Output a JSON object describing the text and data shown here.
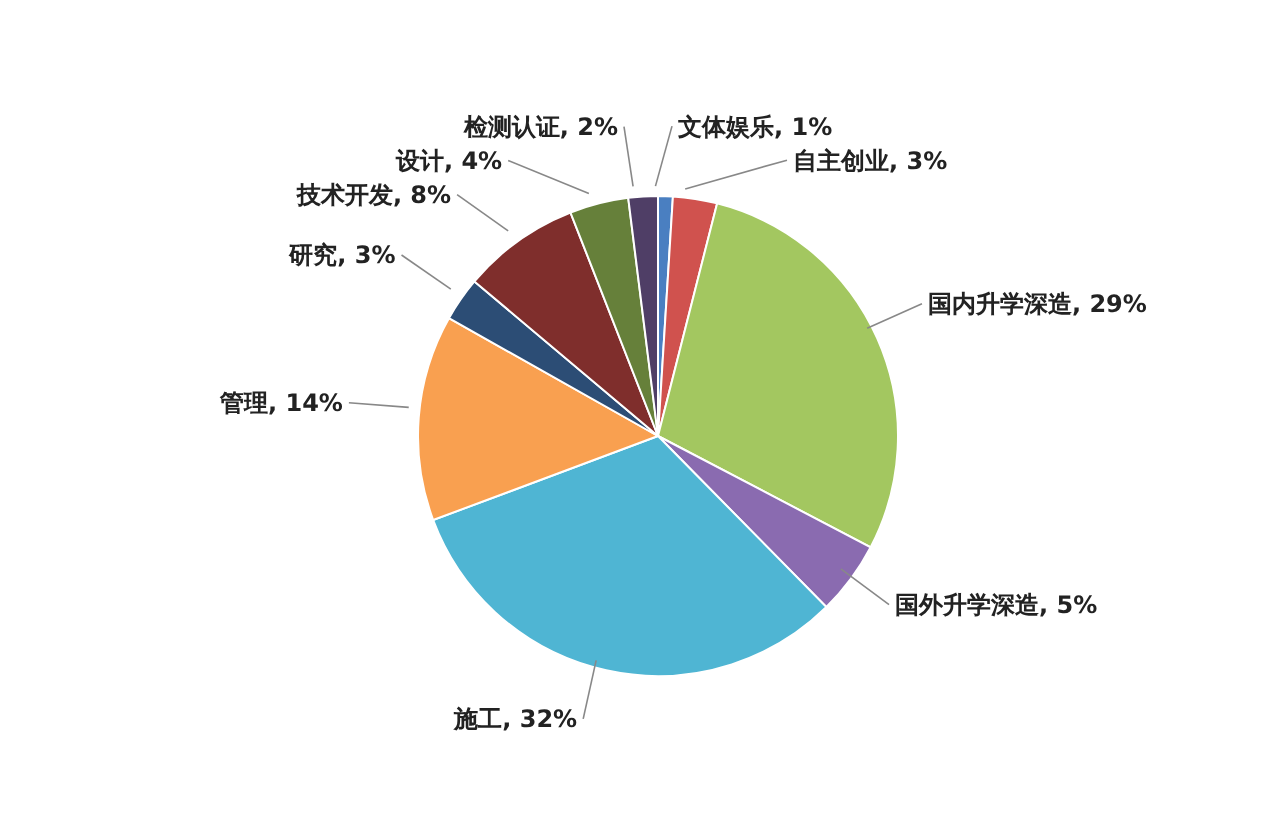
{
  "chart_data": {
    "type": "pie",
    "categories": [
      "文体娱乐",
      "自主创业",
      "国内升学深造",
      "国外升学深造",
      "施工",
      "管理",
      "研究",
      "技术开发",
      "设计",
      "检测认证"
    ],
    "values": [
      1,
      3,
      29,
      5,
      32,
      14,
      3,
      8,
      4,
      2
    ],
    "value_labels": [
      "1%",
      "3%",
      "29%",
      "5%",
      "32%",
      "14%",
      "3%",
      "8%",
      "4%",
      "2%"
    ],
    "colors": [
      "#4a7fc1",
      "#d0524e",
      "#a3c760",
      "#8a6bb0",
      "#4fb5d3",
      "#f9a050",
      "#2c4d75",
      "#7f2e2c",
      "#66803a",
      "#4f3e66"
    ],
    "legend": false
  }
}
